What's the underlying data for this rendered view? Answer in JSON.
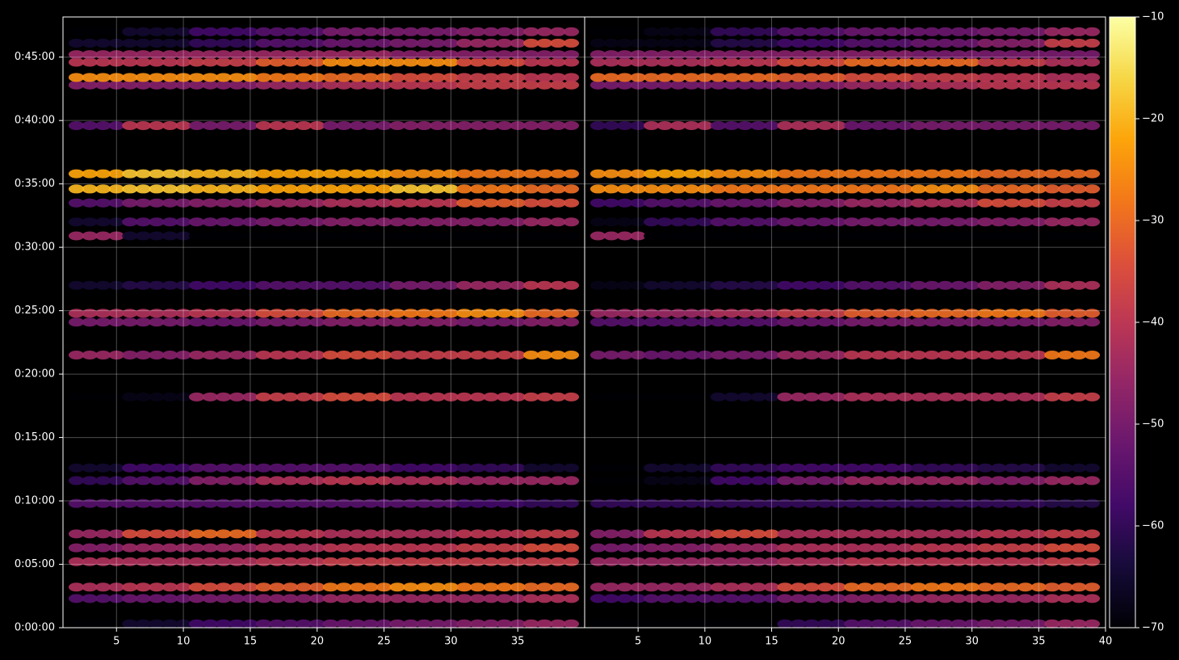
{
  "chart_data": {
    "type": "heatmap",
    "colorscale": "inferno",
    "clim": [
      -70,
      -10
    ],
    "cticks": [
      {
        "value": -70,
        "label": "−70"
      },
      {
        "value": -60,
        "label": "−60"
      },
      {
        "value": -50,
        "label": "−50"
      },
      {
        "value": -40,
        "label": "−40"
      },
      {
        "value": -30,
        "label": "−30"
      },
      {
        "value": -20,
        "label": "−20"
      },
      {
        "value": -10,
        "label": "−10"
      }
    ],
    "ylim": [
      0,
      2890
    ],
    "yticks": [
      {
        "value": 0,
        "label": "0:00:00"
      },
      {
        "value": 300,
        "label": "0:05:00"
      },
      {
        "value": 600,
        "label": "0:10:00"
      },
      {
        "value": 900,
        "label": "0:15:00"
      },
      {
        "value": 1200,
        "label": "0:20:00"
      },
      {
        "value": 1500,
        "label": "0:25:00"
      },
      {
        "value": 1800,
        "label": "0:30:00"
      },
      {
        "value": 2100,
        "label": "0:35:00"
      },
      {
        "value": 2400,
        "label": "0:40:00"
      },
      {
        "value": 2700,
        "label": "0:45:00"
      }
    ],
    "xlim": [
      1,
      40
    ],
    "x_edges": [
      1,
      5,
      10,
      15,
      20,
      25,
      30,
      35,
      39.5
    ],
    "grid": true,
    "panels": [
      {
        "xticks": [
          5,
          10,
          15,
          20,
          25,
          30,
          35
        ],
        "rows": [
          {
            "t": 18,
            "values": [
              -70,
              -65,
              -58,
              -55,
              -52,
              -50,
              -48,
              -45
            ]
          },
          {
            "t": 138,
            "values": [
              -55,
              -52,
              -50,
              -48,
              -45,
              -45,
              -45,
              -42
            ]
          },
          {
            "t": 192,
            "values": [
              -42,
              -40,
              -35,
              -32,
              -28,
              -25,
              -28,
              -30
            ]
          },
          {
            "t": 312,
            "values": [
              -42,
              -42,
              -42,
              -40,
              -38,
              -38,
              -38,
              -38
            ]
          },
          {
            "t": 378,
            "values": [
              -48,
              -45,
              -45,
              -42,
              -40,
              -40,
              -38,
              -35
            ]
          },
          {
            "t": 444,
            "values": [
              -45,
              -35,
              -30,
              -40,
              -42,
              -42,
              -40,
              -38
            ]
          },
          {
            "t": 588,
            "values": [
              -55,
              -55,
              -55,
              -55,
              -55,
              -55,
              -58,
              -60
            ]
          },
          {
            "t": 696,
            "values": [
              -60,
              -55,
              -48,
              -42,
              -40,
              -42,
              -45,
              -45
            ]
          },
          {
            "t": 756,
            "values": [
              -65,
              -58,
              -55,
              -55,
              -55,
              -58,
              -60,
              -65
            ]
          },
          {
            "t": 1092,
            "values": [
              -70,
              -68,
              -45,
              -38,
              -35,
              -40,
              -40,
              -38
            ]
          },
          {
            "t": 1290,
            "values": [
              -45,
              -48,
              -45,
              -40,
              -35,
              -38,
              -38,
              -25
            ]
          },
          {
            "t": 1446,
            "values": [
              -50,
              -50,
              -52,
              -50,
              -48,
              -48,
              -50,
              -48
            ]
          },
          {
            "t": 1488,
            "values": [
              -42,
              -42,
              -40,
              -35,
              -30,
              -28,
              -25,
              -30
            ]
          },
          {
            "t": 1620,
            "values": [
              -65,
              -62,
              -58,
              -55,
              -55,
              -50,
              -45,
              -40
            ]
          },
          {
            "t": 1854,
            "values": [
              -45,
              -65,
              -70,
              -70,
              -70,
              -70,
              -70,
              -70
            ]
          },
          {
            "t": 1920,
            "values": [
              -65,
              -55,
              -52,
              -50,
              -48,
              -48,
              -48,
              -45
            ]
          },
          {
            "t": 2010,
            "values": [
              -55,
              -50,
              -48,
              -45,
              -42,
              -40,
              -32,
              -35
            ]
          },
          {
            "t": 2076,
            "values": [
              -20,
              -18,
              -20,
              -22,
              -22,
              -18,
              -28,
              -30
            ]
          },
          {
            "t": 2148,
            "values": [
              -22,
              -18,
              -20,
              -22,
              -22,
              -25,
              -28,
              -28
            ]
          },
          {
            "t": 2376,
            "values": [
              -55,
              -40,
              -50,
              -40,
              -50,
              -48,
              -48,
              -48
            ]
          },
          {
            "t": 2568,
            "values": [
              -48,
              -48,
              -48,
              -45,
              -42,
              -40,
              -38,
              -38
            ]
          },
          {
            "t": 2604,
            "values": [
              -25,
              -25,
              -25,
              -28,
              -30,
              -35,
              -38,
              -40
            ]
          },
          {
            "t": 2676,
            "values": [
              -40,
              -40,
              -38,
              -32,
              -25,
              -25,
              -35,
              -40
            ]
          },
          {
            "t": 2712,
            "values": [
              -45,
              -45,
              -45,
              -45,
              -45,
              -48,
              -48,
              -48
            ]
          },
          {
            "t": 2766,
            "values": [
              -65,
              -65,
              -60,
              -55,
              -52,
              -50,
              -45,
              -35
            ]
          },
          {
            "t": 2820,
            "values": [
              -70,
              -65,
              -58,
              -55,
              -50,
              -50,
              -48,
              -45
            ]
          }
        ]
      },
      {
        "xticks": [
          5,
          10,
          15,
          20,
          25,
          30,
          35,
          40
        ],
        "rows": [
          {
            "t": 18,
            "values": [
              -70,
              -70,
              -70,
              -60,
              -55,
              -52,
              -50,
              -45
            ]
          },
          {
            "t": 138,
            "values": [
              -58,
              -55,
              -55,
              -50,
              -48,
              -45,
              -45,
              -42
            ]
          },
          {
            "t": 192,
            "values": [
              -45,
              -45,
              -42,
              -35,
              -30,
              -28,
              -30,
              -32
            ]
          },
          {
            "t": 312,
            "values": [
              -45,
              -45,
              -45,
              -42,
              -40,
              -40,
              -40,
              -38
            ]
          },
          {
            "t": 378,
            "values": [
              -50,
              -48,
              -45,
              -42,
              -42,
              -40,
              -38,
              -35
            ]
          },
          {
            "t": 444,
            "values": [
              -48,
              -40,
              -35,
              -42,
              -42,
              -42,
              -40,
              -38
            ]
          },
          {
            "t": 588,
            "values": [
              -60,
              -60,
              -60,
              -60,
              -60,
              -60,
              -60,
              -62
            ]
          },
          {
            "t": 696,
            "values": [
              -70,
              -68,
              -58,
              -50,
              -45,
              -45,
              -48,
              -45
            ]
          },
          {
            "t": 756,
            "values": [
              -70,
              -65,
              -60,
              -58,
              -58,
              -60,
              -62,
              -65
            ]
          },
          {
            "t": 1092,
            "values": [
              -70,
              -70,
              -65,
              -45,
              -42,
              -42,
              -42,
              -38
            ]
          },
          {
            "t": 1290,
            "values": [
              -50,
              -52,
              -50,
              -45,
              -40,
              -40,
              -40,
              -28
            ]
          },
          {
            "t": 1446,
            "values": [
              -55,
              -55,
              -55,
              -52,
              -50,
              -50,
              -50,
              -48
            ]
          },
          {
            "t": 1488,
            "values": [
              -45,
              -45,
              -42,
              -38,
              -32,
              -30,
              -28,
              -32
            ]
          },
          {
            "t": 1620,
            "values": [
              -68,
              -65,
              -62,
              -58,
              -55,
              -52,
              -48,
              -42
            ]
          },
          {
            "t": 1854,
            "values": [
              -45,
              -70,
              -70,
              -70,
              -70,
              -70,
              -70,
              -70
            ]
          },
          {
            "t": 1920,
            "values": [
              -68,
              -60,
              -55,
              -52,
              -50,
              -50,
              -48,
              -45
            ]
          },
          {
            "t": 2010,
            "values": [
              -58,
              -55,
              -52,
              -48,
              -45,
              -42,
              -35,
              -38
            ]
          },
          {
            "t": 2076,
            "values": [
              -25,
              -25,
              -28,
              -28,
              -28,
              -25,
              -30,
              -32
            ]
          },
          {
            "t": 2148,
            "values": [
              -25,
              -22,
              -25,
              -28,
              -28,
              -28,
              -30,
              -30
            ]
          },
          {
            "t": 2376,
            "values": [
              -60,
              -42,
              -55,
              -42,
              -52,
              -50,
              -50,
              -50
            ]
          },
          {
            "t": 2568,
            "values": [
              -50,
              -50,
              -50,
              -48,
              -45,
              -42,
              -40,
              -40
            ]
          },
          {
            "t": 2604,
            "values": [
              -30,
              -30,
              -30,
              -32,
              -35,
              -38,
              -40,
              -42
            ]
          },
          {
            "t": 2676,
            "values": [
              -42,
              -42,
              -40,
              -35,
              -30,
              -30,
              -38,
              -42
            ]
          },
          {
            "t": 2712,
            "values": [
              -48,
              -48,
              -48,
              -48,
              -48,
              -50,
              -50,
              -50
            ]
          },
          {
            "t": 2766,
            "values": [
              -68,
              -68,
              -62,
              -58,
              -55,
              -52,
              -48,
              -38
            ]
          },
          {
            "t": 2820,
            "values": [
              -70,
              -68,
              -60,
              -55,
              -52,
              -52,
              -50,
              -45
            ]
          }
        ]
      }
    ]
  }
}
